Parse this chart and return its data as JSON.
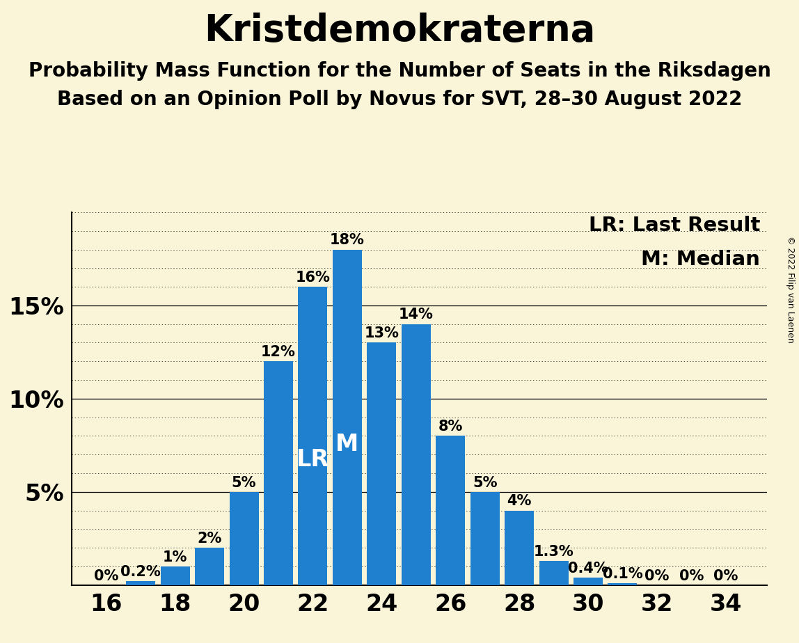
{
  "title": "Kristdemokraterna",
  "subtitle1": "Probability Mass Function for the Number of Seats in the Riksdagen",
  "subtitle2": "Based on an Opinion Poll by Novus for SVT, 28–30 August 2022",
  "copyright": "© 2022 Filip van Laenen",
  "seats": [
    16,
    17,
    18,
    19,
    20,
    21,
    22,
    23,
    24,
    25,
    26,
    27,
    28,
    29,
    30,
    31,
    32,
    33,
    34
  ],
  "probabilities": [
    0.0,
    0.2,
    1.0,
    2.0,
    5.0,
    12.0,
    16.0,
    18.0,
    13.0,
    14.0,
    8.0,
    5.0,
    4.0,
    1.3,
    0.4,
    0.1,
    0.0,
    0.0,
    0.0
  ],
  "bar_color": "#2080d0",
  "background_color": "#faf5d8",
  "LR_seat": 22,
  "M_seat": 23,
  "ytick_labels": [
    "5%",
    "10%",
    "15%"
  ],
  "ytick_values": [
    5,
    10,
    15
  ],
  "legend_LR": "LR: Last Result",
  "legend_M": "M: Median",
  "title_fontsize": 38,
  "subtitle_fontsize": 20,
  "axis_tick_fontsize": 24,
  "bar_label_fontsize": 15,
  "inbar_label_fontsize": 24,
  "legend_fontsize": 21,
  "copyright_fontsize": 9
}
